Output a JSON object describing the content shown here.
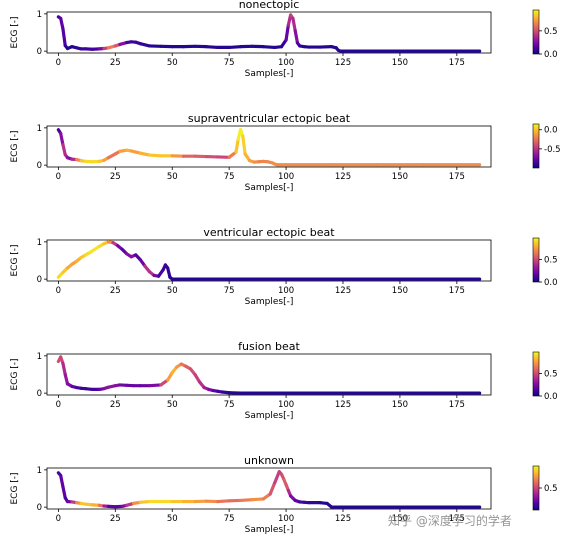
{
  "watermark": "知乎 @深度学习的学者",
  "colormap": [
    "#0d0887",
    "#5c01a6",
    "#9c179e",
    "#cc4778",
    "#ed7953",
    "#fdb42f",
    "#f0f921"
  ],
  "axis_color": "#000000",
  "chart_data": [
    {
      "type": "line",
      "title": "nonectopic",
      "xlabel": "Samples[-]",
      "ylabel": "ECG [-]",
      "xlim": [
        -5,
        190
      ],
      "ylim": [
        -0.05,
        1.05
      ],
      "xticks": [
        0,
        25,
        50,
        75,
        100,
        125,
        150,
        175
      ],
      "yticks": [
        0,
        1
      ],
      "colorbar_ticks": [
        0.0,
        0.5
      ],
      "colorbar_range": [
        0.0,
        0.95
      ],
      "x": [
        0,
        1,
        2,
        3,
        4,
        6,
        8,
        10,
        12,
        15,
        18,
        20,
        22,
        25,
        27,
        30,
        32,
        34,
        36,
        40,
        45,
        50,
        55,
        60,
        65,
        70,
        75,
        80,
        85,
        90,
        95,
        98,
        100,
        101,
        102,
        103,
        104,
        105,
        106,
        108,
        110,
        115,
        120,
        122,
        123,
        124,
        125,
        130,
        150,
        170,
        185
      ],
      "y": [
        0.92,
        0.88,
        0.6,
        0.15,
        0.07,
        0.12,
        0.09,
        0.06,
        0.06,
        0.05,
        0.06,
        0.07,
        0.09,
        0.14,
        0.18,
        0.23,
        0.25,
        0.24,
        0.2,
        0.14,
        0.13,
        0.12,
        0.12,
        0.13,
        0.12,
        0.1,
        0.1,
        0.12,
        0.13,
        0.12,
        0.1,
        0.12,
        0.3,
        0.7,
        0.97,
        0.88,
        0.55,
        0.22,
        0.14,
        0.12,
        0.11,
        0.11,
        0.12,
        0.09,
        0.02,
        0.0,
        0.0,
        0.0,
        0.0,
        0.0,
        0.0
      ],
      "c": [
        0.1,
        0.15,
        0.2,
        0.1,
        0.05,
        0.05,
        0.05,
        0.1,
        0.1,
        0.1,
        0.15,
        0.3,
        0.65,
        0.7,
        0.4,
        0.15,
        0.1,
        0.1,
        0.1,
        0.05,
        0.05,
        0.05,
        0.05,
        0.05,
        0.05,
        0.05,
        0.05,
        0.05,
        0.05,
        0.05,
        0.05,
        0.05,
        0.1,
        0.3,
        0.5,
        0.45,
        0.35,
        0.2,
        0.1,
        0.05,
        0.05,
        0.05,
        0.05,
        0.05,
        0.05,
        0.05,
        0.05,
        0.05,
        0.05,
        0.05,
        0.05
      ]
    },
    {
      "type": "line",
      "title": "supraventricular ectopic beat",
      "xlabel": "Samples[-]",
      "ylabel": "ECG [-]",
      "xlim": [
        -5,
        190
      ],
      "ylim": [
        -0.05,
        1.05
      ],
      "xticks": [
        0,
        25,
        50,
        75,
        100,
        125,
        150,
        175
      ],
      "yticks": [
        0,
        1
      ],
      "colorbar_ticks": [
        0.0,
        -0.5
      ],
      "colorbar_range": [
        -1.0,
        0.15
      ],
      "x": [
        0,
        1,
        2,
        3,
        4,
        6,
        8,
        10,
        12,
        15,
        18,
        20,
        22,
        25,
        27,
        30,
        32,
        34,
        36,
        40,
        45,
        50,
        55,
        60,
        65,
        70,
        75,
        78,
        79,
        80,
        81,
        82,
        84,
        86,
        88,
        90,
        92,
        94,
        95,
        96,
        100,
        120,
        140,
        160,
        185
      ],
      "y": [
        0.95,
        0.85,
        0.55,
        0.28,
        0.2,
        0.16,
        0.15,
        0.12,
        0.1,
        0.09,
        0.1,
        0.13,
        0.2,
        0.3,
        0.37,
        0.4,
        0.38,
        0.35,
        0.32,
        0.27,
        0.25,
        0.25,
        0.24,
        0.24,
        0.23,
        0.22,
        0.21,
        0.35,
        0.7,
        0.95,
        0.78,
        0.3,
        0.12,
        0.08,
        0.09,
        0.1,
        0.09,
        0.06,
        0.03,
        0.01,
        0.01,
        0.01,
        0.01,
        0.01,
        0.01
      ],
      "c": [
        0.05,
        0.2,
        0.35,
        0.5,
        0.3,
        0.25,
        0.55,
        0.85,
        0.9,
        0.95,
        0.9,
        0.85,
        0.7,
        0.6,
        0.7,
        0.85,
        0.8,
        0.75,
        0.8,
        0.85,
        0.9,
        0.85,
        0.65,
        0.55,
        0.6,
        0.45,
        0.55,
        0.8,
        0.95,
        1.0,
        0.95,
        0.85,
        0.8,
        0.75,
        0.7,
        0.7,
        0.7,
        0.72,
        0.72,
        0.72,
        0.72,
        0.72,
        0.72,
        0.72,
        0.72
      ]
    },
    {
      "type": "line",
      "title": "ventricular ectopic beat",
      "xlabel": "Samples[-]",
      "ylabel": "ECG [-]",
      "xlim": [
        -5,
        190
      ],
      "ylim": [
        -0.05,
        1.05
      ],
      "xticks": [
        0,
        25,
        50,
        75,
        100,
        125,
        150,
        175
      ],
      "yticks": [
        0,
        1
      ],
      "colorbar_ticks": [
        0.0,
        0.5
      ],
      "colorbar_range": [
        0.0,
        0.98
      ],
      "x": [
        0,
        2,
        4,
        6,
        8,
        10,
        12,
        14,
        16,
        18,
        20,
        22,
        24,
        26,
        28,
        30,
        32,
        34,
        36,
        38,
        40,
        42,
        44,
        46,
        47,
        48,
        49,
        50,
        52,
        60,
        80,
        100,
        130,
        160,
        185
      ],
      "y": [
        0.05,
        0.18,
        0.3,
        0.4,
        0.48,
        0.58,
        0.65,
        0.72,
        0.8,
        0.88,
        0.95,
        1.0,
        0.98,
        0.9,
        0.8,
        0.68,
        0.6,
        0.65,
        0.52,
        0.35,
        0.2,
        0.1,
        0.08,
        0.25,
        0.38,
        0.3,
        0.05,
        0.0,
        0.0,
        0.0,
        0.0,
        0.0,
        0.0,
        0.0,
        0.0
      ],
      "c": [
        0.95,
        0.9,
        0.85,
        0.75,
        0.8,
        0.85,
        0.9,
        0.95,
        0.95,
        0.95,
        0.9,
        0.85,
        0.6,
        0.3,
        0.15,
        0.2,
        0.35,
        0.2,
        0.1,
        0.3,
        0.55,
        0.3,
        0.15,
        0.1,
        0.1,
        0.1,
        0.05,
        0.05,
        0.05,
        0.05,
        0.05,
        0.05,
        0.05,
        0.05,
        0.05
      ]
    },
    {
      "type": "line",
      "title": "fusion beat",
      "xlabel": "Samples[-]",
      "ylabel": "ECG [-]",
      "xlim": [
        -5,
        190
      ],
      "ylim": [
        -0.05,
        1.05
      ],
      "xticks": [
        0,
        25,
        50,
        75,
        100,
        125,
        150,
        175
      ],
      "yticks": [
        0,
        1
      ],
      "colorbar_ticks": [
        0.0,
        0.5
      ],
      "colorbar_range": [
        0.0,
        0.98
      ],
      "x": [
        0,
        1,
        2,
        3,
        4,
        6,
        8,
        10,
        12,
        15,
        18,
        20,
        22,
        25,
        27,
        30,
        33,
        36,
        40,
        45,
        48,
        50,
        52,
        54,
        56,
        58,
        60,
        62,
        64,
        66,
        68,
        70,
        72,
        75,
        80,
        100,
        130,
        160,
        185
      ],
      "y": [
        0.85,
        0.97,
        0.8,
        0.5,
        0.25,
        0.18,
        0.15,
        0.13,
        0.12,
        0.1,
        0.1,
        0.12,
        0.16,
        0.2,
        0.22,
        0.21,
        0.2,
        0.2,
        0.2,
        0.22,
        0.35,
        0.55,
        0.7,
        0.78,
        0.72,
        0.65,
        0.5,
        0.3,
        0.15,
        0.1,
        0.07,
        0.05,
        0.03,
        0.01,
        0.0,
        0.0,
        0.0,
        0.0,
        0.0
      ],
      "c": [
        0.5,
        0.55,
        0.45,
        0.35,
        0.3,
        0.2,
        0.15,
        0.1,
        0.1,
        0.1,
        0.15,
        0.25,
        0.3,
        0.3,
        0.25,
        0.2,
        0.2,
        0.2,
        0.2,
        0.3,
        0.7,
        0.85,
        0.8,
        0.7,
        0.6,
        0.55,
        0.5,
        0.45,
        0.4,
        0.3,
        0.2,
        0.15,
        0.1,
        0.05,
        0.05,
        0.05,
        0.05,
        0.05,
        0.05
      ]
    },
    {
      "type": "line",
      "title": "unknown",
      "xlabel": "Samples[-]",
      "ylabel": "ECG [-]",
      "xlim": [
        -5,
        190
      ],
      "ylim": [
        -0.05,
        1.05
      ],
      "xticks": [
        0,
        25,
        50,
        75,
        100,
        125,
        150,
        175
      ],
      "yticks": [
        0,
        1
      ],
      "colorbar_ticks": [
        0.5
      ],
      "colorbar_range": [
        0.0,
        1.0
      ],
      "x": [
        0,
        1,
        2,
        3,
        4,
        6,
        8,
        10,
        12,
        15,
        18,
        20,
        22,
        25,
        28,
        30,
        33,
        36,
        40,
        45,
        50,
        55,
        60,
        65,
        70,
        75,
        80,
        85,
        90,
        93,
        95,
        97,
        98,
        99,
        100,
        101,
        102,
        104,
        106,
        108,
        110,
        115,
        118,
        120,
        125,
        150,
        170,
        185
      ],
      "y": [
        0.92,
        0.85,
        0.55,
        0.25,
        0.15,
        0.14,
        0.12,
        0.1,
        0.08,
        0.06,
        0.05,
        0.03,
        0.02,
        0.01,
        0.02,
        0.05,
        0.1,
        0.13,
        0.15,
        0.15,
        0.15,
        0.15,
        0.15,
        0.16,
        0.15,
        0.17,
        0.18,
        0.2,
        0.22,
        0.35,
        0.65,
        0.95,
        0.88,
        0.75,
        0.6,
        0.45,
        0.3,
        0.18,
        0.14,
        0.13,
        0.12,
        0.12,
        0.1,
        0.0,
        0.0,
        0.0,
        0.0,
        0.0
      ],
      "c": [
        0.1,
        0.15,
        0.2,
        0.15,
        0.1,
        0.3,
        0.6,
        0.85,
        0.9,
        0.85,
        0.8,
        0.5,
        0.2,
        0.15,
        0.2,
        0.3,
        0.6,
        0.85,
        0.9,
        0.95,
        0.9,
        0.85,
        0.8,
        0.75,
        0.7,
        0.6,
        0.65,
        0.7,
        0.75,
        0.6,
        0.5,
        0.45,
        0.5,
        0.55,
        0.6,
        0.5,
        0.3,
        0.2,
        0.15,
        0.1,
        0.1,
        0.05,
        0.05,
        0.05,
        0.05,
        0.05,
        0.05,
        0.05
      ]
    }
  ]
}
